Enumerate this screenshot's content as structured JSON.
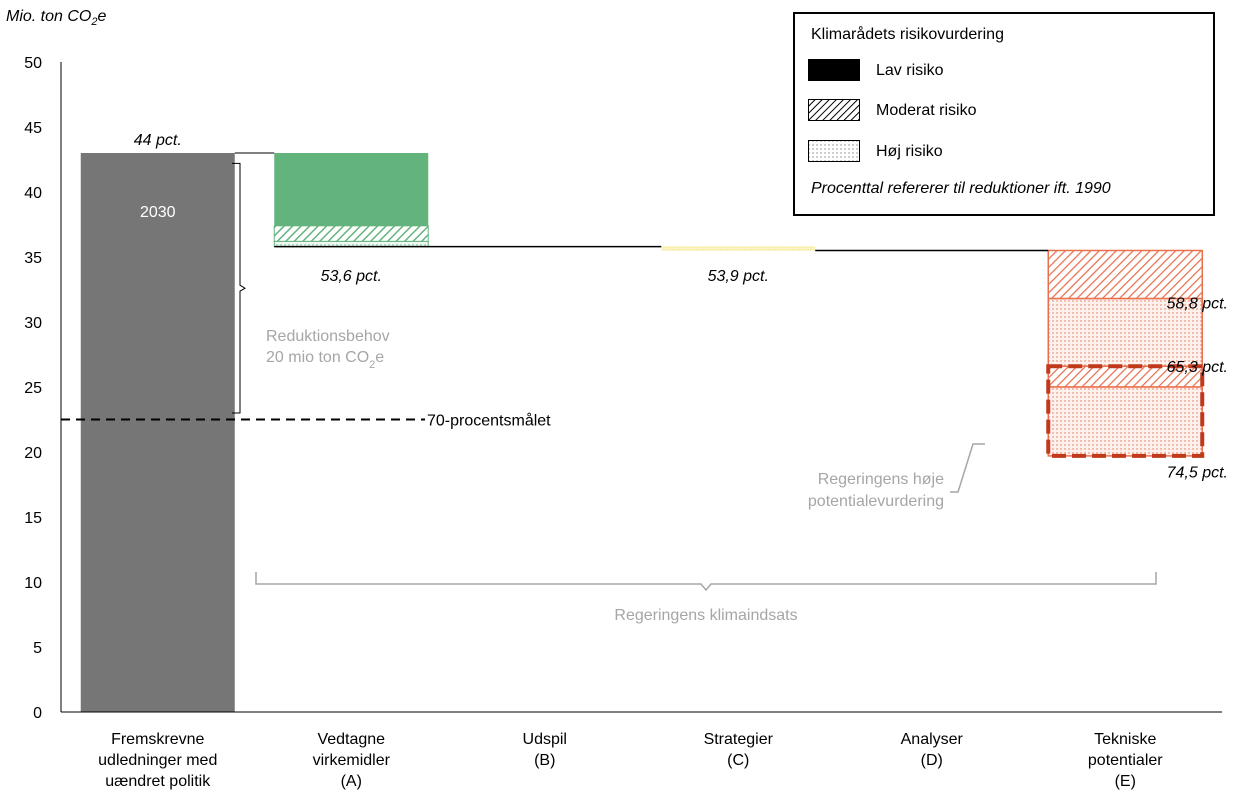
{
  "chart_data": {
    "type": "bar",
    "subtype": "waterfall",
    "ylabel": "Mio. ton CO2e",
    "ylabel_parts": {
      "prefix": "Mio. ton CO",
      "sub": "2",
      "suffix": "e"
    },
    "ylim": [
      0,
      50
    ],
    "yticks": [
      "0",
      "5",
      "10",
      "15",
      "20",
      "25",
      "30",
      "35",
      "40",
      "45",
      "50"
    ],
    "grid": false,
    "legend_position": "top-right",
    "categories": [
      [
        "Fremskrevne",
        "udledninger med",
        "uændret politik"
      ],
      [
        "Vedtagne",
        "virkemidler",
        "(A)"
      ],
      [
        "Udspil",
        "(B)"
      ],
      [
        "Strategier",
        "(C)"
      ],
      [
        "Analyser",
        "(D)"
      ],
      [
        "Tekniske",
        "potentialer",
        "(E)"
      ]
    ],
    "baseline_bar": {
      "category": 0,
      "value": 43.0,
      "color": "#767676",
      "inner_label": "2030",
      "top_label": "44 pct."
    },
    "segments": [
      {
        "category": 1,
        "from": 37.4,
        "to": 43.0,
        "risk": "Lav risiko",
        "color": "#63b37d"
      },
      {
        "category": 1,
        "from": 36.2,
        "to": 37.4,
        "risk": "Moderat risiko",
        "color": "#63b37d"
      },
      {
        "category": 1,
        "from": 35.8,
        "to": 36.2,
        "risk": "Høj risiko",
        "color": "#63b37d"
      },
      {
        "category": 3,
        "from": 35.5,
        "to": 35.8,
        "risk": "Høj risiko",
        "color": "#f2dd55"
      },
      {
        "category": 5,
        "from": 31.8,
        "to": 35.5,
        "risk": "Moderat risiko",
        "color": "#e8704f"
      },
      {
        "category": 5,
        "from": 26.6,
        "to": 31.8,
        "risk": "Høj risiko",
        "color": "#e8704f"
      },
      {
        "category": 5,
        "from": 25.0,
        "to": 26.6,
        "risk": "Moderat risiko",
        "color": "#e8704f"
      },
      {
        "category": 5,
        "from": 19.7,
        "to": 25.0,
        "risk": "Høj risiko",
        "color": "#e8704f"
      }
    ],
    "pct_labels": [
      {
        "text": "53,6 pct.",
        "category": 1,
        "y": 33.6
      },
      {
        "text": "53,9 pct.",
        "category": 3,
        "y": 33.6
      },
      {
        "text": "58,8 pct.",
        "category": 5,
        "y": 31.5
      },
      {
        "text": "65,3 pct.",
        "category": 5,
        "y": 26.6
      },
      {
        "text": "74,5 pct.",
        "category": 5,
        "y": 18.5
      }
    ],
    "target_line": {
      "y": 22.5,
      "label": "70-procentsmålet"
    },
    "reduction_need": {
      "from": 23.0,
      "to": 42.2,
      "line1": "Reduktionsbehov",
      "line2_prefix": "20 mio ton CO",
      "line2_sub": "2",
      "line2_suffix": "e"
    },
    "government_effort_label": "Regeringens klimaindsats",
    "high_potential_label": [
      "Regeringens høje",
      "potentialevurdering"
    ],
    "high_potential_box": {
      "category": 5,
      "from": 19.7,
      "to": 26.6,
      "border_color": "#c0391b"
    }
  },
  "legend": {
    "title": "Klimarådets risikovurdering",
    "items": [
      {
        "label": "Lav risiko",
        "pattern": "solid"
      },
      {
        "label": "Moderat risiko",
        "pattern": "hatch"
      },
      {
        "label": "Høj risiko",
        "pattern": "dots"
      }
    ],
    "note": "Procenttal refererer til reduktioner ift. 1990"
  },
  "colors": {
    "gray_annotation": "#a6a6a6",
    "axis": "#000000"
  }
}
